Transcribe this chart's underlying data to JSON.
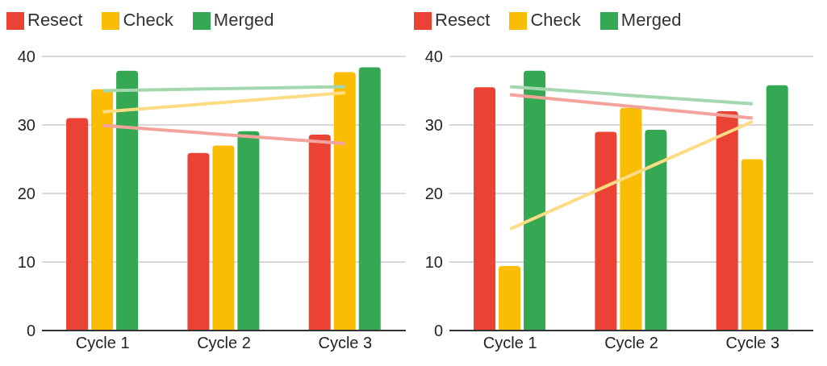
{
  "chart_data": [
    {
      "type": "bar",
      "categories": [
        "Cycle 1",
        "Cycle 2",
        "Cycle 3"
      ],
      "ylim": [
        0,
        40
      ],
      "yticks": [
        0,
        10,
        20,
        30,
        40
      ],
      "grid": "y",
      "legend": "top",
      "series": [
        {
          "name": "Resect",
          "color": "#ea4335",
          "values": [
            31,
            25.9,
            28.6
          ]
        },
        {
          "name": "Check",
          "color": "#fbbc04",
          "values": [
            35.2,
            27,
            37.7
          ]
        },
        {
          "name": "Merged",
          "color": "#34a853",
          "values": [
            37.9,
            29.1,
            38.4
          ]
        },
        {
          "type": "line",
          "color": "#f4a39c",
          "values": [
            29.9,
            28.6,
            27.3
          ]
        },
        {
          "type": "line",
          "color": "#fddc84",
          "values": [
            31.9,
            33.3,
            34.7
          ]
        },
        {
          "type": "line",
          "color": "#a3d7ae",
          "values": [
            35,
            35.3,
            35.6
          ]
        }
      ]
    },
    {
      "type": "bar",
      "categories": [
        "Cycle 1",
        "Cycle 2",
        "Cycle 3"
      ],
      "ylim": [
        0,
        40
      ],
      "yticks": [
        0,
        10,
        20,
        30,
        40
      ],
      "grid": "y",
      "legend": "top",
      "series": [
        {
          "name": "Resect",
          "color": "#ea4335",
          "values": [
            35.5,
            29,
            32
          ]
        },
        {
          "name": "Check",
          "color": "#fbbc04",
          "values": [
            9.4,
            32.5,
            25
          ]
        },
        {
          "name": "Merged",
          "color": "#34a853",
          "values": [
            37.9,
            29.3,
            35.8
          ]
        },
        {
          "type": "line",
          "color": "#f4a39c",
          "values": [
            34.4,
            32.7,
            31
          ]
        },
        {
          "type": "line",
          "color": "#fddc84",
          "values": [
            14.8,
            22.7,
            30.5
          ]
        },
        {
          "type": "line",
          "color": "#a3d7ae",
          "values": [
            35.6,
            34.3,
            33.1
          ]
        }
      ]
    }
  ]
}
